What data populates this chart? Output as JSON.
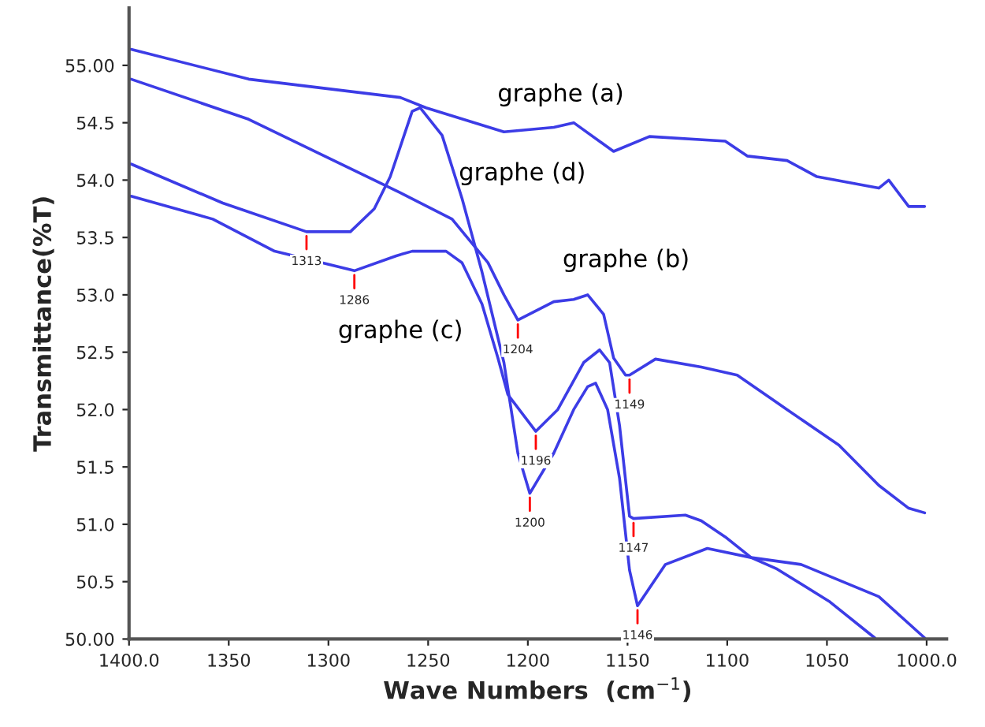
{
  "chart_data": {
    "type": "line",
    "xlabel": "Wave Numbers  (cm$^{−1}$)",
    "ylabel": "Transmittance(%T)",
    "xlim": [
      1400,
      990
    ],
    "ylim": [
      50,
      55.5
    ],
    "xticks": [
      {
        "value": 1400,
        "label": "1400.0"
      },
      1350,
      1300,
      1250,
      1200,
      1150,
      1100,
      1050,
      {
        "value": 1000,
        "label": "1000.0"
      }
    ],
    "yticks": [
      {
        "value": 50,
        "label": "50.00"
      },
      {
        "value": 50.5,
        "label": "50.5"
      },
      {
        "value": 51,
        "label": "51.0"
      },
      {
        "value": 51.5,
        "label": "51.5"
      },
      {
        "value": 52,
        "label": "52.0"
      },
      {
        "value": 52.5,
        "label": "52.5"
      },
      {
        "value": 53,
        "label": "53.0"
      },
      {
        "value": 53.5,
        "label": "53.5"
      },
      {
        "value": 54,
        "label": "54.0"
      },
      {
        "value": 54.5,
        "label": "54.5"
      },
      {
        "value": 55,
        "label": "55.00"
      }
    ],
    "grid": false,
    "legend": false,
    "marker": "none",
    "line_style": "solid",
    "series": [
      {
        "name": "graphe (a)",
        "color": "#3c3ce6",
        "x": [
          1399,
          1340,
          1264,
          1251,
          1212,
          1187,
          1177,
          1157,
          1139,
          1101,
          1090,
          1070,
          1055,
          1024,
          1019,
          1009,
          1001
        ],
        "values": [
          55.14,
          54.88,
          54.72,
          54.63,
          54.42,
          54.46,
          54.5,
          54.25,
          54.38,
          54.34,
          54.21,
          54.17,
          54.03,
          53.93,
          54.0,
          53.77,
          53.77
        ]
      },
      {
        "name": "graphe (d)",
        "color": "#3c3ce6",
        "x": [
          1399,
          1353,
          1311,
          1289,
          1277,
          1269,
          1258,
          1254,
          1243,
          1233,
          1223,
          1212,
          1205,
          1199,
          1187,
          1177,
          1170,
          1166,
          1160,
          1154,
          1149,
          1145,
          1131,
          1110,
          1088,
          1063,
          1024,
          1001
        ],
        "values": [
          54.14,
          53.8,
          53.55,
          53.55,
          53.75,
          54.03,
          54.6,
          54.63,
          54.39,
          53.84,
          53.2,
          52.41,
          51.62,
          51.27,
          51.62,
          52.0,
          52.2,
          52.23,
          52.0,
          51.4,
          50.6,
          50.29,
          50.65,
          50.79,
          50.71,
          50.65,
          50.37,
          50.01
        ]
      },
      {
        "name": "graphe (b)",
        "color": "#3c3ce6",
        "x": [
          1399,
          1340,
          1302,
          1264,
          1238,
          1220,
          1212,
          1205,
          1187,
          1177,
          1170,
          1162,
          1157,
          1151,
          1149,
          1136,
          1113,
          1095,
          1070,
          1044,
          1024,
          1009,
          1001
        ],
        "values": [
          54.88,
          54.53,
          54.21,
          53.89,
          53.66,
          53.28,
          53.0,
          52.78,
          52.94,
          52.96,
          53.0,
          52.83,
          52.45,
          52.3,
          52.3,
          52.44,
          52.37,
          52.3,
          52.0,
          51.69,
          51.34,
          51.14,
          51.1
        ]
      },
      {
        "name": "graphe (c)",
        "color": "#3c3ce6",
        "x": [
          1399,
          1358,
          1327,
          1287,
          1266,
          1258,
          1241,
          1233,
          1223,
          1215,
          1210,
          1196,
          1185,
          1172,
          1164,
          1159,
          1154,
          1149,
          1147,
          1121,
          1113,
          1101,
          1088,
          1075,
          1049,
          1026
        ],
        "values": [
          53.86,
          53.66,
          53.38,
          53.21,
          53.34,
          53.38,
          53.38,
          53.28,
          52.92,
          52.45,
          52.13,
          51.81,
          52.0,
          52.41,
          52.52,
          52.41,
          51.86,
          51.07,
          51.05,
          51.08,
          51.03,
          50.89,
          50.71,
          50.61,
          50.33,
          50.01
        ]
      }
    ],
    "annotations": [
      {
        "text": "1313",
        "x": 1311,
        "y": 53.55
      },
      {
        "text": "1286",
        "x": 1287,
        "y": 53.21
      },
      {
        "text": "1204",
        "x": 1205,
        "y": 52.78
      },
      {
        "text": "1149",
        "x": 1149,
        "y": 52.3
      },
      {
        "text": "1196",
        "x": 1196,
        "y": 51.81
      },
      {
        "text": "1200",
        "x": 1199,
        "y": 51.27
      },
      {
        "text": "1147",
        "x": 1147,
        "y": 51.05
      },
      {
        "text": "1146",
        "x": 1145,
        "y": 50.29
      }
    ]
  }
}
